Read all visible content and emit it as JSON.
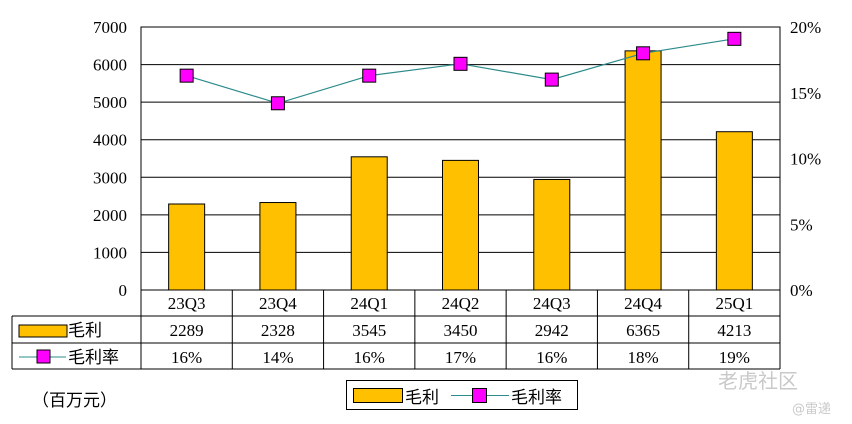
{
  "chart_data": {
    "type": "bar",
    "categories": [
      "23Q3",
      "23Q4",
      "24Q1",
      "24Q2",
      "24Q3",
      "24Q4",
      "25Q1"
    ],
    "series": [
      {
        "name": "毛利",
        "type": "bar",
        "axis": "left",
        "color": "#FFC000",
        "values": [
          2289,
          2328,
          3545,
          3450,
          2942,
          6365,
          4213
        ],
        "labels": [
          "2289",
          "2328",
          "3545",
          "3450",
          "2942",
          "6365",
          "4213"
        ]
      },
      {
        "name": "毛利率",
        "type": "line",
        "axis": "right",
        "color": "#FF00FF",
        "line_color": "#2E8B8B",
        "values": [
          16.3,
          14.2,
          16.3,
          17.2,
          16.0,
          18.0,
          19.1
        ],
        "labels": [
          "16%",
          "14%",
          "16%",
          "17%",
          "16%",
          "18%",
          "19%"
        ]
      }
    ],
    "y_left": {
      "ticks": [
        "0",
        "1000",
        "2000",
        "3000",
        "4000",
        "5000",
        "6000",
        "7000"
      ],
      "ylim": [
        0,
        7000
      ]
    },
    "y_right": {
      "ticks": [
        "0%",
        "5%",
        "10%",
        "15%",
        "20%"
      ],
      "ylim": [
        0,
        20
      ]
    },
    "grid": true,
    "legend": {
      "placement": "bottom",
      "items": [
        "毛利",
        "毛利率"
      ]
    },
    "data_table": true,
    "unit_note": "（百万元）"
  },
  "watermarks": [
    "老虎社区",
    "@雷递"
  ]
}
